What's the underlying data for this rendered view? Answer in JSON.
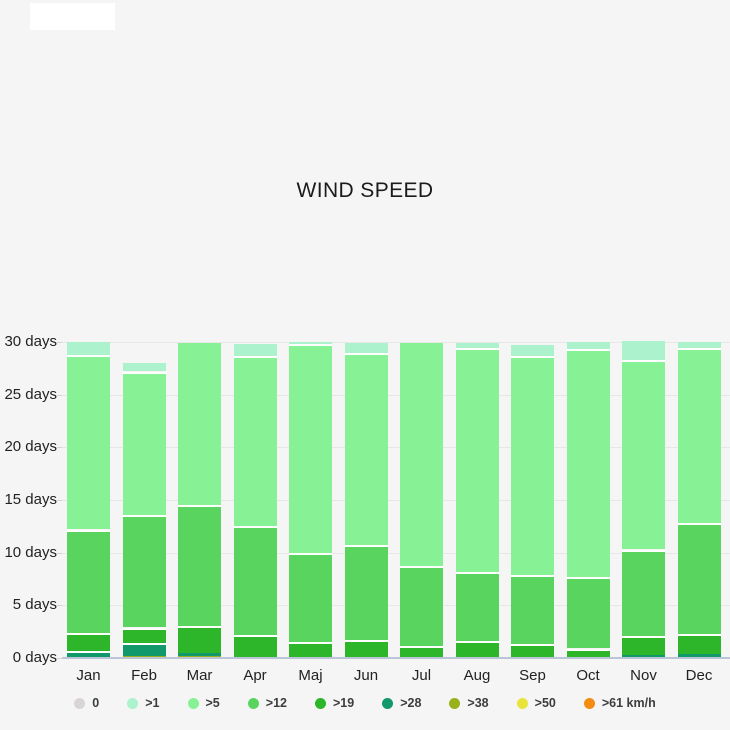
{
  "title": "WIND SPEED",
  "chart_data": {
    "type": "bar",
    "subtype": "stacked-vertical",
    "title": "WIND SPEED",
    "unit": "days",
    "ylim": [
      0,
      30
    ],
    "grid": "horizontal",
    "legend_position": "bottom",
    "months": [
      "Jan",
      "Feb",
      "Mar",
      "Apr",
      "Maj",
      "Jun",
      "Jul",
      "Aug",
      "Sep",
      "Oct",
      "Nov",
      "Dec"
    ],
    "y_ticks": [
      "0 days",
      "5 days",
      "10 days",
      "15 days",
      "20 days",
      "25 days",
      "30 days"
    ],
    "legend": [
      {
        "label": "0",
        "color": "#d9d5d5"
      },
      {
        "label": ">1",
        "color": "#abf2cd"
      },
      {
        "label": ">5",
        "color": "#87f195"
      },
      {
        "label": ">12",
        "color": "#59d55f"
      },
      {
        "label": ">19",
        "color": "#2eb62a"
      },
      {
        "label": ">28",
        "color": "#12996b"
      },
      {
        "label": ">38",
        "color": "#98b019"
      },
      {
        "label": ">50",
        "color": "#e9e43c"
      },
      {
        "label": ">61 km/h",
        "color": "#f28d11"
      }
    ],
    "series_cumulative_days": [
      {
        "threshold": ">1",
        "values": [
          30.0,
          28.0,
          29.9,
          29.8,
          30.0,
          29.9,
          29.9,
          29.9,
          29.7,
          30.0,
          30.1,
          30.0
        ]
      },
      {
        "threshold": ">5",
        "values": [
          28.8,
          27.2,
          29.9,
          28.7,
          29.8,
          29.0,
          29.9,
          29.4,
          28.7,
          29.3,
          28.3,
          29.4
        ]
      },
      {
        "threshold": ">12",
        "values": [
          12.2,
          13.6,
          14.5,
          12.5,
          10.0,
          10.7,
          8.7,
          8.2,
          7.9,
          7.7,
          10.3,
          12.8
        ]
      },
      {
        "threshold": ">19",
        "values": [
          2.4,
          2.9,
          3.0,
          2.2,
          1.5,
          1.7,
          1.1,
          1.6,
          1.3,
          0.9,
          2.1,
          2.3
        ]
      },
      {
        "threshold": ">28",
        "values": [
          0.7,
          1.4,
          0.45,
          0,
          0,
          0,
          0,
          0,
          0,
          0,
          0.3,
          0.4
        ]
      },
      {
        "threshold": ">38",
        "values": [
          0,
          0.2,
          0.2,
          0,
          0,
          0,
          0,
          0,
          0,
          0,
          0,
          0
        ]
      },
      {
        "threshold": ">50",
        "values": [
          0,
          0,
          0,
          0,
          0,
          0,
          0,
          0,
          0,
          0,
          0,
          0
        ]
      },
      {
        "threshold": ">61",
        "values": [
          0,
          0,
          0,
          0,
          0,
          0,
          0,
          0,
          0,
          0,
          0,
          0
        ]
      }
    ]
  }
}
